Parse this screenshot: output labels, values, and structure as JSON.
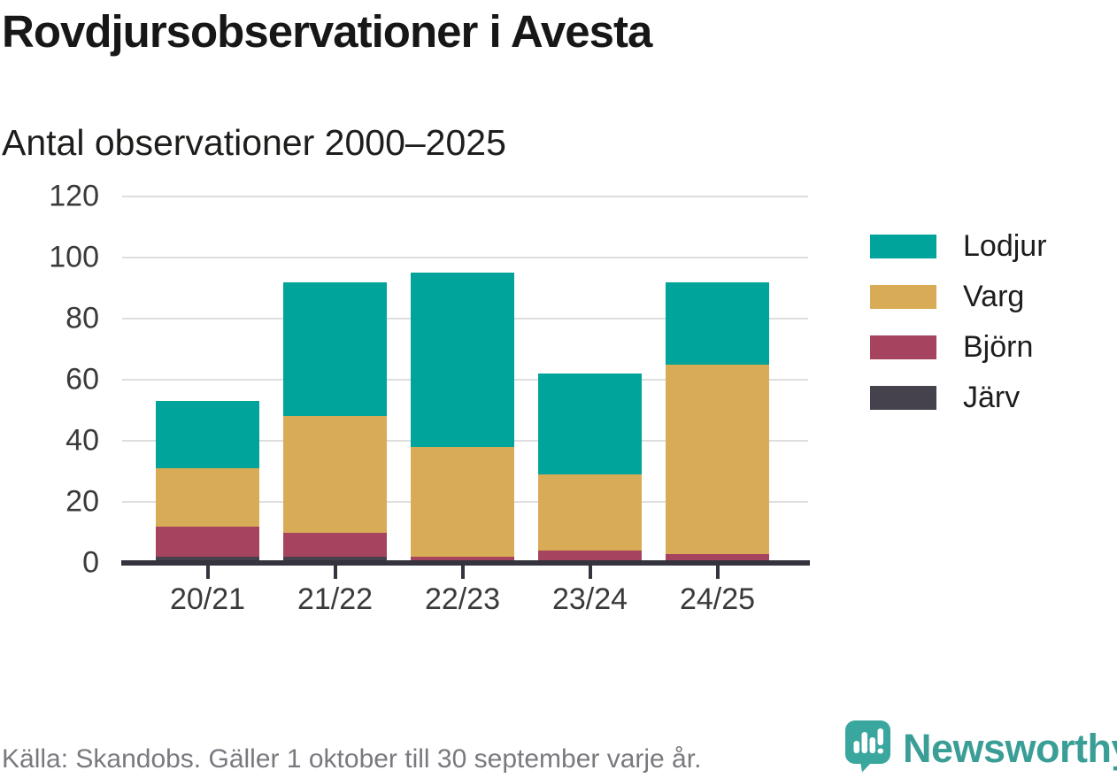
{
  "title": "Rovdjursobservationer i Avesta",
  "subtitle": "Antal observationer 2000–2025",
  "source_note": "Källa: Skandobs. Gäller 1 oktober till 30 september varje år.",
  "branding": {
    "name": "Newsworthy",
    "icon": "newsworthy-logo-icon",
    "icon_color": "#3aa79e",
    "text_color": "#3a9e97"
  },
  "colors": {
    "lodjur": "#00a49a",
    "varg": "#d8ab56",
    "bjorn": "#a6435f",
    "jarv": "#45414d",
    "axis": "#35333d",
    "gridline": "#dedede",
    "tick_text": "#3a3a3a",
    "title_text": "#171717",
    "source_text": "#7a797f"
  },
  "chart_data": {
    "type": "bar",
    "stacked": true,
    "title": "Rovdjursobservationer i Avesta",
    "subtitle": "Antal observationer 2000–2025",
    "xlabel": "",
    "ylabel": "",
    "categories": [
      "20/21",
      "21/22",
      "22/23",
      "23/24",
      "24/25"
    ],
    "series": [
      {
        "name": "Järv",
        "color": "#45414d",
        "values": [
          2,
          2,
          0,
          0,
          0
        ]
      },
      {
        "name": "Björn",
        "color": "#a6435f",
        "values": [
          10,
          8,
          2,
          4,
          3
        ]
      },
      {
        "name": "Varg",
        "color": "#d8ab56",
        "values": [
          19,
          38,
          36,
          25,
          62
        ]
      },
      {
        "name": "Lodjur",
        "color": "#00a49a",
        "values": [
          22,
          44,
          57,
          33,
          27
        ]
      }
    ],
    "totals": [
      53,
      92,
      95,
      62,
      92
    ],
    "ylim": [
      0,
      120
    ],
    "yticks": [
      0,
      20,
      40,
      60,
      80,
      100,
      120
    ],
    "grid": true,
    "legend_position": "right",
    "legend_order": [
      "Lodjur",
      "Varg",
      "Björn",
      "Järv"
    ]
  }
}
